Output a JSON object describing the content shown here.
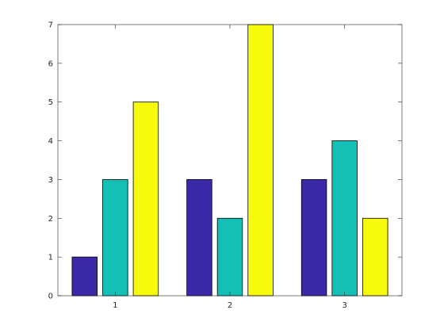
{
  "chart_data": {
    "type": "bar",
    "categories": [
      "1",
      "2",
      "3"
    ],
    "series": [
      {
        "values": [
          1,
          3,
          3
        ],
        "color": "#3b2aa8"
      },
      {
        "values": [
          3,
          2,
          4
        ],
        "color": "#14bfb6"
      },
      {
        "values": [
          5,
          7,
          2
        ],
        "color": "#f8fa0d"
      }
    ],
    "ylim": [
      0,
      7
    ],
    "yticks": [
      0,
      1,
      2,
      3,
      4,
      5,
      6,
      7
    ],
    "grid": false,
    "legend": "none"
  }
}
